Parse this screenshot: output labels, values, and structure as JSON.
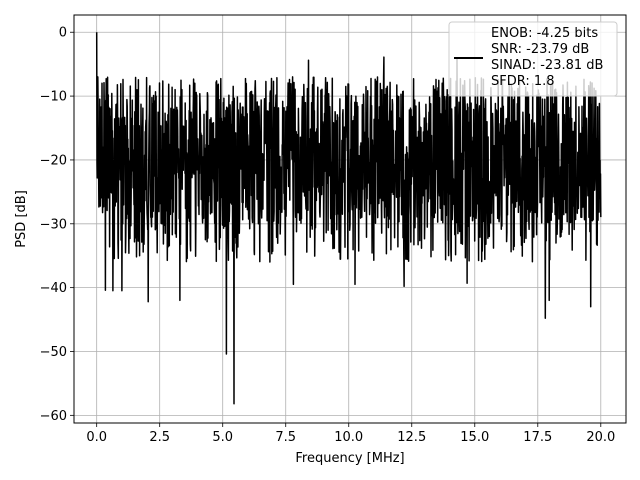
{
  "chart_data": {
    "type": "line",
    "title": "",
    "xlabel": "Frequency [MHz]",
    "ylabel": "PSD [dB]",
    "xlim": [
      -0.9,
      21.0
    ],
    "ylim": [
      -61.2,
      2.7
    ],
    "x_ticks": [
      0.0,
      2.5,
      5.0,
      7.5,
      10.0,
      12.5,
      15.0,
      17.5,
      20.0
    ],
    "x_tick_labels": [
      "0.0",
      "2.5",
      "5.0",
      "7.5",
      "10.0",
      "12.5",
      "15.0",
      "17.5",
      "20.0"
    ],
    "y_ticks": [
      0,
      -10,
      -20,
      -30,
      -40,
      -50,
      -60
    ],
    "y_tick_labels": [
      "0",
      "−10",
      "−20",
      "−30",
      "−40",
      "−50",
      "−60"
    ],
    "grid": true,
    "legend_position": "top-right",
    "series": [
      {
        "name": "ENOB: -4.25 bits\nSNR: -23.79 dB\nSINAD: -23.81 dB\nSFDR: 1.8",
        "color": "#000000",
        "x_range": [
          0.0,
          20.0
        ],
        "typical_band": [
          -30,
          -11
        ],
        "notable_points": [
          {
            "x": 0.0,
            "y": 0.0
          },
          {
            "x": 0.05,
            "y": -7
          },
          {
            "x": 0.35,
            "y": -40.4
          },
          {
            "x": 0.65,
            "y": -40.5
          },
          {
            "x": 1.0,
            "y": -40.5
          },
          {
            "x": 2.05,
            "y": -42.2
          },
          {
            "x": 3.3,
            "y": -42.0
          },
          {
            "x": 5.15,
            "y": -50.4
          },
          {
            "x": 5.45,
            "y": -58.2
          },
          {
            "x": 7.8,
            "y": -39.5
          },
          {
            "x": 10.25,
            "y": -39.5
          },
          {
            "x": 12.2,
            "y": -39.8
          },
          {
            "x": 14.7,
            "y": -39.3
          },
          {
            "x": 17.8,
            "y": -44.8
          },
          {
            "x": 17.95,
            "y": -42.0
          },
          {
            "x": 19.6,
            "y": -43.0
          },
          {
            "x": 8.4,
            "y": -4.4
          },
          {
            "x": 11.4,
            "y": -3.9
          },
          {
            "x": 14.3,
            "y": -4.1
          }
        ]
      }
    ]
  }
}
